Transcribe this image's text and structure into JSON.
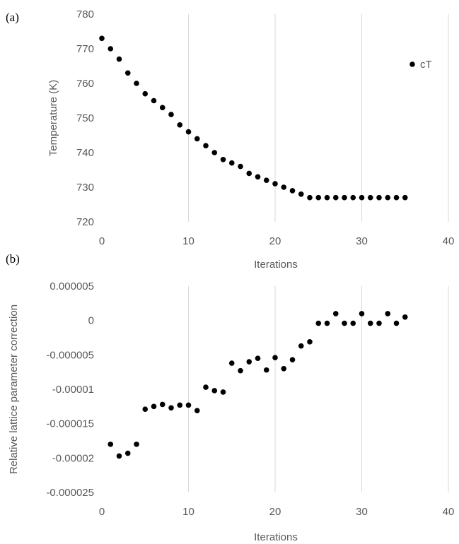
{
  "chart_data": [
    {
      "panel_label": "(a)",
      "type": "scatter",
      "xlabel": "Iterations",
      "ylabel": "Temperature (K)",
      "xlim": [
        0,
        40
      ],
      "ylim": [
        720,
        780
      ],
      "xticks": [
        0,
        10,
        20,
        30,
        40
      ],
      "yticks": [
        720,
        730,
        740,
        750,
        760,
        770,
        780
      ],
      "xtick_labels": [
        "0",
        "10",
        "20",
        "30",
        "40"
      ],
      "ytick_labels": [
        "720",
        "730",
        "740",
        "750",
        "760",
        "770",
        "780"
      ],
      "grid": "vertical",
      "legend": "top-right",
      "series": [
        {
          "name": "cT",
          "x": [
            0,
            1,
            2,
            3,
            4,
            5,
            6,
            7,
            8,
            9,
            10,
            11,
            12,
            13,
            14,
            15,
            16,
            17,
            18,
            19,
            20,
            21,
            22,
            23,
            24,
            25,
            26,
            27,
            28,
            29,
            30,
            31,
            32,
            33,
            34,
            35
          ],
          "y": [
            773,
            770,
            767,
            763,
            760,
            757,
            755,
            753,
            751,
            748,
            746,
            744,
            742,
            740,
            738,
            737,
            736,
            734,
            733,
            732,
            731,
            730,
            729,
            728,
            727,
            727,
            727,
            727,
            727,
            727,
            727,
            727,
            727,
            727,
            727,
            727
          ]
        }
      ]
    },
    {
      "panel_label": "(b)",
      "type": "scatter",
      "xlabel": "Iterations",
      "ylabel": "Relative lattice parameter correction",
      "xlim": [
        0,
        40
      ],
      "ylim": [
        -2.5e-05,
        5e-06
      ],
      "xticks": [
        0,
        10,
        20,
        30,
        40
      ],
      "yticks": [
        -2.5e-05,
        -2e-05,
        -1.5e-05,
        -1e-05,
        -5e-06,
        0,
        5e-06
      ],
      "xtick_labels": [
        "0",
        "10",
        "20",
        "30",
        "40"
      ],
      "ytick_labels": [
        "-0.000025",
        "-0.00002",
        "-0.000015",
        "-0.00001",
        "-0.000005",
        "0",
        "0.000005"
      ],
      "grid": "vertical",
      "legend": "none",
      "series": [
        {
          "x": [
            1,
            2,
            3,
            4,
            5,
            6,
            7,
            8,
            9,
            10,
            11,
            12,
            13,
            14,
            15,
            16,
            17,
            18,
            19,
            20,
            21,
            22,
            23,
            24,
            25,
            26,
            27,
            28,
            29,
            30,
            31,
            32,
            33,
            34,
            35
          ],
          "y": [
            -1.8e-05,
            -1.97e-05,
            -1.93e-05,
            -1.8e-05,
            -1.29e-05,
            -1.25e-05,
            -1.22e-05,
            -1.27e-05,
            -1.23e-05,
            -1.23e-05,
            -1.31e-05,
            -9.7e-06,
            -1.02e-05,
            -1.04e-05,
            -6.2e-06,
            -7.3e-06,
            -6e-06,
            -5.5e-06,
            -7.2e-06,
            -5.4e-06,
            -7e-06,
            -5.7e-06,
            -3.7e-06,
            -3.1e-06,
            -4e-07,
            -4e-07,
            1e-06,
            -4e-07,
            -4e-07,
            1e-06,
            -4e-07,
            -4e-07,
            1e-06,
            -4e-07,
            5e-07
          ]
        }
      ]
    }
  ],
  "colors": {
    "marker": "#000000",
    "grid": "#d9d9d9",
    "tick_text": "#595959"
  }
}
